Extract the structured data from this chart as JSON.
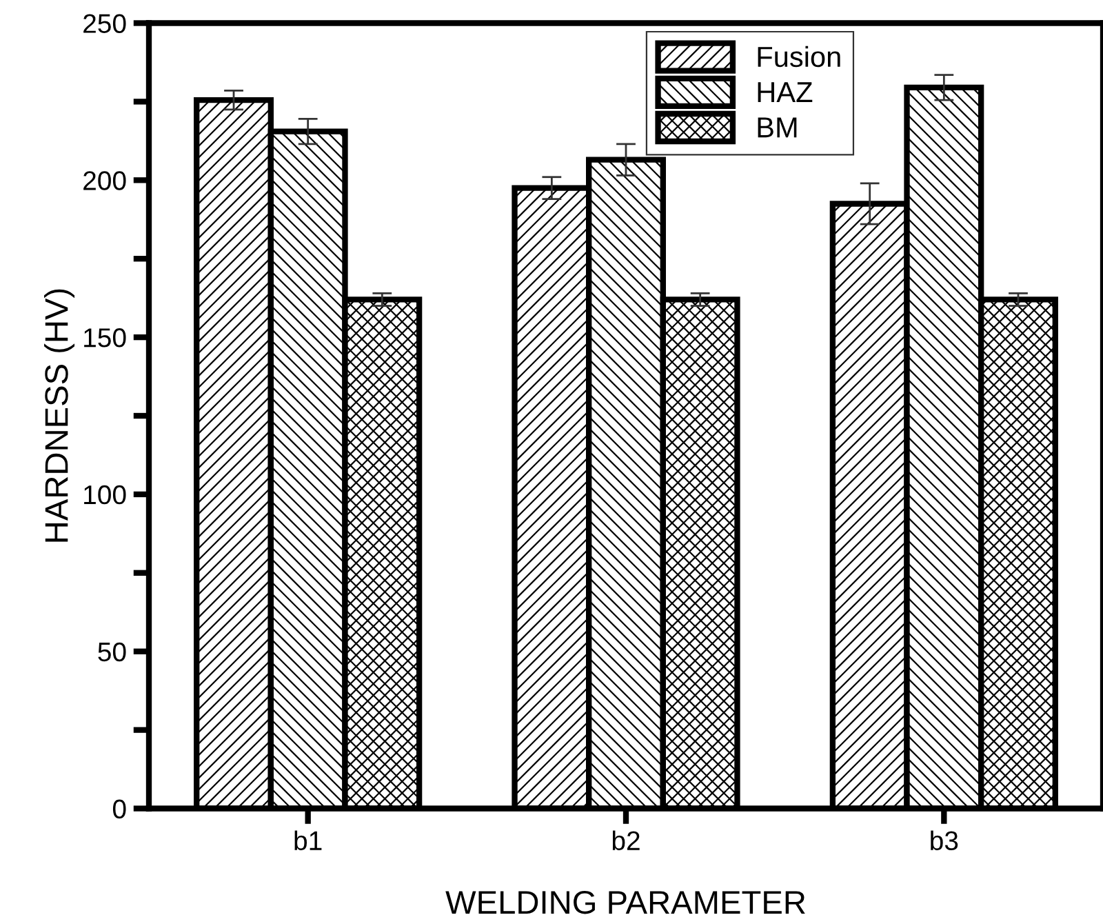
{
  "chart_data": {
    "type": "bar",
    "xlabel": "WELDING PARAMETER",
    "ylabel": "HARDNESS (HV)",
    "categories": [
      "b1",
      "b2",
      "b3"
    ],
    "series": [
      {
        "name": "Fusion",
        "color": "#000000",
        "values": [
          225.5,
          197.5,
          192.5
        ],
        "errors": [
          3,
          3.5,
          6.5
        ]
      },
      {
        "name": "HAZ",
        "color": "#000000",
        "values": [
          215.5,
          206.5,
          229.5
        ],
        "errors": [
          4,
          5,
          4
        ]
      },
      {
        "name": "BM",
        "color": "#000000",
        "values": [
          162,
          162,
          162
        ],
        "errors": [
          2,
          2,
          2
        ]
      }
    ],
    "ylim": [
      0,
      250
    ],
    "yticks": [
      0,
      {
        "value": 25,
        "label": null
      },
      50,
      {
        "value": 75,
        "label": null
      },
      100,
      {
        "value": 125,
        "label": null
      },
      150,
      {
        "value": 175,
        "label": null
      },
      200,
      {
        "value": 225,
        "label": null
      },
      250
    ],
    "grid": false,
    "legend": "top"
  }
}
